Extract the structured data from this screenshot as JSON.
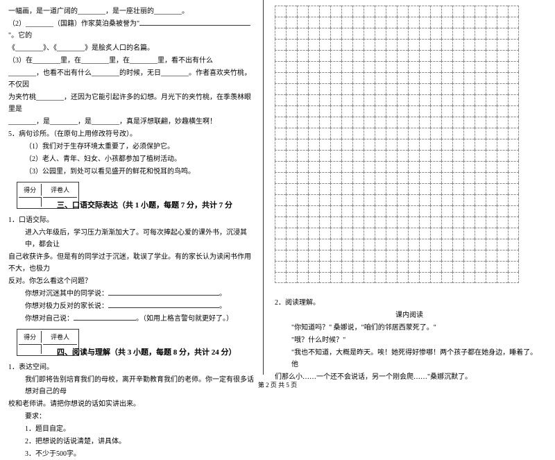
{
  "left": {
    "p1": "一幅画，是一道广阔的________，是一座壮丽的________。",
    "p2a": "（2）________（国籍）作家莫泊桑被誉为\"",
    "p2b": "\"。它的",
    "p3": "《________》、《________》是脍炙人口的名篇。",
    "p4a": "（3）在________里，在________里，在________里，看不出有什么",
    "p4b": "________，也看不出有什么________的时候，无日________。作者喜欢夹竹桃，不仅因",
    "p4c": "为夹竹桃________，还因为它能引起许多的幻想。月光下的夹竹桃，在季羡林眼里是",
    "p4d": "________，是________，是________，真是浮想联翩，妙趣横生啊！",
    "q5": "5．病句诊所。（在原句上用修改符号改）。",
    "q5_1": "（1）我们对于生存环境太重要了，必须保护它。",
    "q5_2": "（2）老人、青年、妇女、小孩都参加了植树活动。",
    "q5_3": "（3）公园里，到处可以看见盛开的鲜花和悦耳的鸟鸣。",
    "score_h1": "得分",
    "score_h2": "评卷人",
    "sec3_title": "三、口语交际表达（共 1 小题，每题 7 分，共计 7 分",
    "s3_q1": "1．口语交际。",
    "s3_p1": "进入六年级后，学习压力渐渐加大了。可每次捧起心爱的课外书，沉浸其中，都会让",
    "s3_p2": "自己收获许多。但是有的同学过于沉迷，耽误了学业。有的家长认为读闲书作用不大，也极力",
    "s3_p3": "反对。你怎么看这个问题？",
    "s3_l1": "你想对沉迷其中的同学说：",
    "s3_l2": "你想对极力反对的家长说：",
    "s3_l3a": "你想对自己说：",
    "s3_l3b": "。（如用上格言警句就更好了。）",
    "sec4_title": "四、阅读与理解（共 3 小题，每题 8 分，共计 24 分）",
    "s4_q1": "1．表达空间。",
    "s4_p1": "我们即将告别培育我们的母校，离开辛勤教育我们的老师。你一定有很多话想对自己的母",
    "s4_p2": "校和老师讲。请把你想说的话如实讲出来。",
    "s4_req": "要求：",
    "s4_r1": "1．题目自定。",
    "s4_r2": "2．把想说的话说清楚，讲具体。",
    "s4_r3": "3．不少于500字。"
  },
  "right": {
    "r_q2": "2．阅读理解。",
    "r_sub": "课内阅读",
    "r_p1": "\"你知道吗？\" 桑娜说，\"咱们的邻居西蒙死了。\"",
    "r_p2": "\"哦？什么时候？\"",
    "r_p3": "\"我也不知道，大概是昨天。唉！她死得好惨哪！两个孩子都在她身边，睡着了。他",
    "r_p4": "们那么小……一个还不会说话，另一个刚会爬……\"桑娜沉默了。"
  },
  "footer": "第 2 页 共 5 页",
  "grid": {
    "cols": 22,
    "rows": 25
  }
}
